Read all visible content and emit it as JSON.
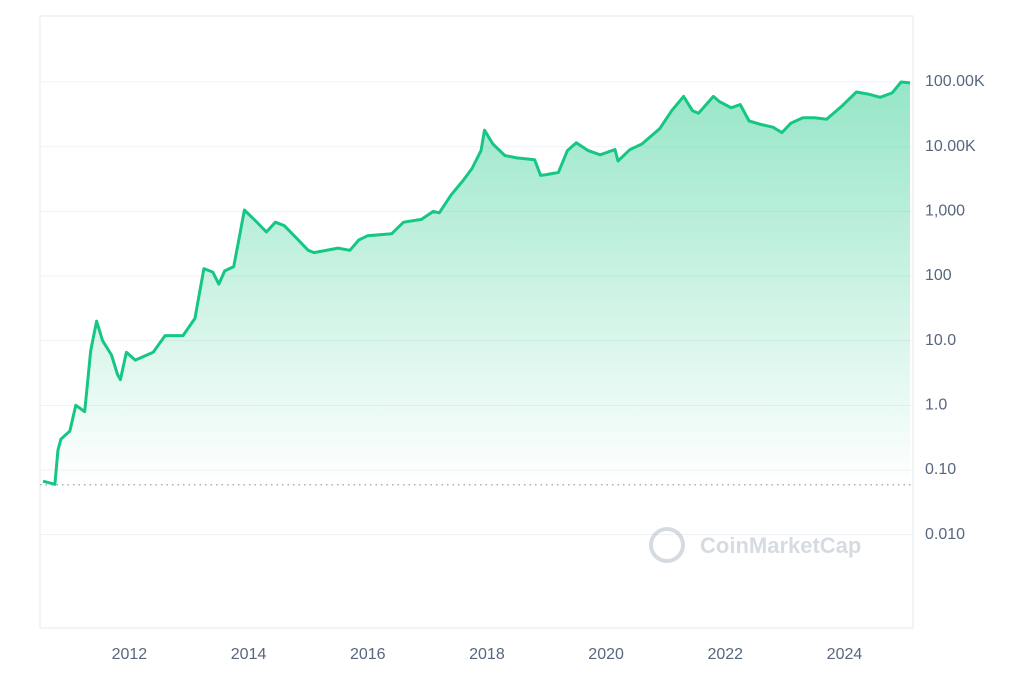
{
  "chart_data": {
    "type": "line",
    "log_scale_y": true,
    "grid": true,
    "watermark": "CoinMarketCap",
    "start_price_line": 0.059,
    "xlim": [
      2010.5,
      2025.15
    ],
    "xticks": [
      2012,
      2014,
      2016,
      2018,
      2020,
      2022,
      2024
    ],
    "ylim": [
      0.00036,
      1050000
    ],
    "yticks": [
      {
        "value": 0.01,
        "label": "0.010"
      },
      {
        "value": 0.1,
        "label": "0.10"
      },
      {
        "value": 1,
        "label": "1.0"
      },
      {
        "value": 10,
        "label": "10.0"
      },
      100,
      {
        "value": 1000,
        "label": "1,000"
      },
      {
        "value": 10000,
        "label": "10.00K"
      },
      {
        "value": 100000,
        "label": "100.00K"
      }
    ],
    "x": [
      2010.55,
      2010.75,
      2010.8,
      2010.85,
      2011.0,
      2011.1,
      2011.25,
      2011.35,
      2011.45,
      2011.55,
      2011.7,
      2011.8,
      2011.85,
      2011.95,
      2012.1,
      2012.4,
      2012.6,
      2012.9,
      2013.1,
      2013.25,
      2013.4,
      2013.5,
      2013.6,
      2013.75,
      2013.85,
      2013.93,
      2014.1,
      2014.3,
      2014.45,
      2014.6,
      2014.8,
      2015.0,
      2015.1,
      2015.5,
      2015.7,
      2015.85,
      2016.0,
      2016.4,
      2016.6,
      2016.9,
      2017.1,
      2017.2,
      2017.4,
      2017.6,
      2017.75,
      2017.9,
      2017.96,
      2018.1,
      2018.3,
      2018.5,
      2018.8,
      2018.9,
      2019.0,
      2019.2,
      2019.35,
      2019.5,
      2019.7,
      2019.9,
      2020.15,
      2020.2,
      2020.4,
      2020.6,
      2020.9,
      2021.1,
      2021.3,
      2021.45,
      2021.55,
      2021.8,
      2021.9,
      2022.1,
      2022.25,
      2022.4,
      2022.6,
      2022.8,
      2022.95,
      2023.1,
      2023.3,
      2023.5,
      2023.7,
      2023.95,
      2024.2,
      2024.4,
      2024.6,
      2024.8,
      2024.95,
      2025.1
    ],
    "series": [
      {
        "color": "#16c784",
        "values": [
          0.067,
          0.06,
          0.2,
          0.3,
          0.4,
          1.0,
          0.8,
          7,
          20,
          10,
          6,
          3,
          2.5,
          6.6,
          5,
          6.6,
          12,
          12,
          22,
          130,
          115,
          75,
          120,
          140,
          420,
          1050,
          740,
          480,
          680,
          600,
          390,
          250,
          230,
          270,
          250,
          360,
          420,
          450,
          680,
          750,
          1000,
          950,
          1800,
          3000,
          4600,
          8700,
          18000,
          11000,
          7300,
          6700,
          6300,
          3600,
          3700,
          4000,
          8700,
          11500,
          8700,
          7500,
          9000,
          6000,
          9000,
          11000,
          19000,
          36000,
          60000,
          36000,
          33000,
          60000,
          50000,
          40000,
          45000,
          25000,
          22000,
          20000,
          16500,
          23000,
          28000,
          28000,
          26500,
          42000,
          70000,
          65000,
          58000,
          68000,
          100000,
          97000
        ]
      }
    ]
  }
}
